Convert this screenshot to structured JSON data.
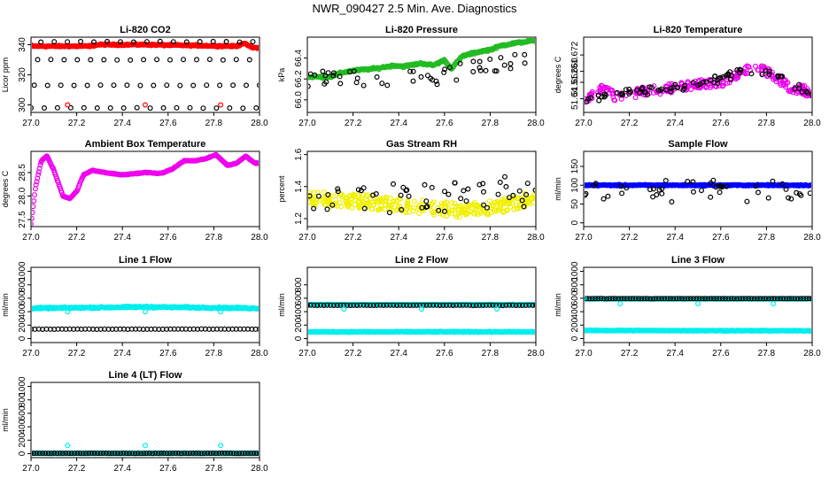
{
  "title": "NWR_090427  2.5 Min. Ave. Diagnostics",
  "colors": {
    "red": "#ff0000",
    "green": "#22bb22",
    "magenta": "#ee00ee",
    "yellow": "#f0f000",
    "blue": "#0000ff",
    "cyan": "#00eeee",
    "black": "#000000"
  },
  "chart_data": [
    {
      "id": "co2",
      "type": "scatter",
      "title": "Li-820 CO2",
      "ylabel": "Licor ppm",
      "xlim": [
        27.0,
        28.0
      ],
      "ylim": [
        295,
        345
      ],
      "xticks": [
        "27.0",
        "27.2",
        "27.4",
        "27.6",
        "27.8",
        "28.0"
      ],
      "yticks": [
        300,
        320,
        340
      ],
      "ytick_labels": [
        "300",
        "320",
        "340"
      ],
      "series": [
        {
          "name": "red",
          "color": "red",
          "style": "dense",
          "baseline": [
            [
              27.0,
              339
            ],
            [
              27.25,
              339
            ],
            [
              27.3,
              340
            ],
            [
              27.5,
              340
            ],
            [
              27.9,
              339
            ],
            [
              27.93,
              341
            ],
            [
              27.97,
              338
            ]
          ],
          "noise": 0.6
        },
        {
          "name": "black",
          "color": "black",
          "style": "sparse",
          "levels": [
            298,
            313,
            330,
            342
          ],
          "noise": 0.3,
          "count": 70
        }
      ],
      "extras": [
        [
          27.16,
          300,
          "red"
        ],
        [
          27.5,
          300,
          "red"
        ],
        [
          27.83,
          300,
          "red"
        ],
        [
          27.0,
          340,
          "red"
        ]
      ]
    },
    {
      "id": "pressure",
      "type": "scatter",
      "title": "Li-820 Pressure",
      "ylabel": "kPa",
      "xlim": [
        27.0,
        28.0
      ],
      "ylim": [
        65.88,
        66.6
      ],
      "xticks": [
        "27.0",
        "27.2",
        "27.4",
        "27.6",
        "27.8",
        "28.0"
      ],
      "yticks": [
        66.0,
        66.2,
        66.4
      ],
      "ytick_labels": [
        "66.0",
        "66.2",
        "66.4"
      ],
      "series": [
        {
          "name": "green",
          "color": "green",
          "style": "dense",
          "baseline": [
            [
              27.0,
              66.22
            ],
            [
              27.1,
              66.22
            ],
            [
              27.15,
              66.26
            ],
            [
              27.2,
              66.28
            ],
            [
              27.3,
              66.3
            ],
            [
              27.38,
              66.33
            ],
            [
              27.42,
              66.32
            ],
            [
              27.5,
              66.35
            ],
            [
              27.55,
              66.33
            ],
            [
              27.6,
              66.38
            ],
            [
              27.63,
              66.3
            ],
            [
              27.68,
              66.42
            ],
            [
              27.75,
              66.46
            ],
            [
              27.8,
              66.48
            ],
            [
              27.85,
              66.52
            ],
            [
              27.9,
              66.54
            ],
            [
              28.0,
              66.57
            ]
          ],
          "noise": 0.012
        },
        {
          "name": "black",
          "color": "black",
          "style": "scatter",
          "baseline": [
            [
              27.0,
              66.2
            ],
            [
              27.5,
              66.2
            ],
            [
              28.0,
              66.4
            ]
          ],
          "spread": 0.16,
          "count": 50
        }
      ]
    },
    {
      "id": "temperature",
      "type": "scatter",
      "title": "Li-820 Temperature",
      "ylabel": "degrees C",
      "xlim": [
        27.0,
        28.0
      ],
      "ylim": [
        51.63,
        51.685
      ],
      "xticks": [
        "27.0",
        "27.2",
        "27.4",
        "27.6",
        "27.8",
        "28.0"
      ],
      "yticks": [
        51.64,
        51.652,
        51.66,
        51.672
      ],
      "ytick_labels": [
        "51.64",
        "51.652",
        "51.660",
        "51.672"
      ],
      "series": [
        {
          "name": "magenta",
          "color": "magenta",
          "style": "scatter",
          "baseline": [
            [
              27.0,
              51.637
            ],
            [
              27.08,
              51.648
            ],
            [
              27.15,
              51.64
            ],
            [
              27.25,
              51.645
            ],
            [
              27.4,
              51.648
            ],
            [
              27.5,
              51.65
            ],
            [
              27.6,
              51.652
            ],
            [
              27.7,
              51.66
            ],
            [
              27.75,
              51.665
            ],
            [
              27.8,
              51.66
            ],
            [
              27.85,
              51.655
            ],
            [
              27.9,
              51.648
            ],
            [
              28.0,
              51.645
            ]
          ],
          "spread": 0.007,
          "count": 260
        },
        {
          "name": "black",
          "color": "black",
          "style": "scatter",
          "baseline": [
            [
              27.0,
              51.64
            ],
            [
              27.5,
              51.65
            ],
            [
              27.75,
              51.662
            ],
            [
              28.0,
              51.645
            ]
          ],
          "spread": 0.006,
          "count": 80
        }
      ]
    },
    {
      "id": "ambient",
      "type": "line",
      "title": "Ambient Box Temperature",
      "ylabel": "degrees C",
      "xlim": [
        27.0,
        28.0
      ],
      "ylim": [
        27.35,
        28.95
      ],
      "xticks": [
        "27.0",
        "27.2",
        "27.4",
        "27.6",
        "27.8",
        "28.0"
      ],
      "yticks": [
        27.5,
        28.0,
        28.5
      ],
      "ytick_labels": [
        "27.5",
        "28.0",
        "28.5"
      ],
      "series": [
        {
          "name": "magenta",
          "color": "magenta",
          "style": "dense",
          "baseline": [
            [
              27.0,
              27.4
            ],
            [
              27.02,
              28.2
            ],
            [
              27.045,
              28.75
            ],
            [
              27.07,
              28.85
            ],
            [
              27.1,
              28.55
            ],
            [
              27.14,
              28.0
            ],
            [
              27.17,
              27.95
            ],
            [
              27.2,
              28.1
            ],
            [
              27.23,
              28.45
            ],
            [
              27.27,
              28.55
            ],
            [
              27.32,
              28.5
            ],
            [
              27.4,
              28.45
            ],
            [
              27.5,
              28.5
            ],
            [
              27.57,
              28.48
            ],
            [
              27.62,
              28.58
            ],
            [
              27.67,
              28.75
            ],
            [
              27.72,
              28.75
            ],
            [
              27.77,
              28.8
            ],
            [
              27.81,
              28.88
            ],
            [
              27.86,
              28.65
            ],
            [
              27.9,
              28.7
            ],
            [
              27.94,
              28.85
            ],
            [
              27.98,
              28.7
            ]
          ],
          "noise": 0.01
        }
      ]
    },
    {
      "id": "rh",
      "type": "scatter",
      "title": "Gas Stream RH",
      "ylabel": "percent",
      "xlim": [
        27.0,
        28.0
      ],
      "ylim": [
        1.15,
        1.62
      ],
      "xticks": [
        "27.0",
        "27.2",
        "27.4",
        "27.6",
        "27.8",
        "28.0"
      ],
      "yticks": [
        1.2,
        1.4,
        1.6
      ],
      "ytick_labels": [
        "1.2",
        "1.4",
        "1.6"
      ],
      "series": [
        {
          "name": "yellow",
          "color": "yellow",
          "style": "scatter",
          "baseline": [
            [
              27.0,
              1.33
            ],
            [
              27.3,
              1.3
            ],
            [
              27.5,
              1.27
            ],
            [
              27.7,
              1.25
            ],
            [
              27.85,
              1.28
            ],
            [
              28.0,
              1.33
            ]
          ],
          "spread": 0.09,
          "count": 320
        },
        {
          "name": "black",
          "color": "black",
          "style": "scatter",
          "baseline": [
            [
              27.0,
              1.35
            ],
            [
              27.5,
              1.32
            ],
            [
              28.0,
              1.38
            ]
          ],
          "spread": 0.2,
          "count": 55
        }
      ]
    },
    {
      "id": "sampleflow",
      "type": "scatter",
      "title": "Sample Flow",
      "ylabel": "ml/min",
      "xlim": [
        27.0,
        28.0
      ],
      "ylim": [
        -10,
        190
      ],
      "xticks": [
        "27.0",
        "27.2",
        "27.4",
        "27.6",
        "27.8",
        "28.0"
      ],
      "yticks": [
        0,
        50,
        100,
        150
      ],
      "ytick_labels": [
        "0",
        "50",
        "100",
        "150"
      ],
      "series": [
        {
          "name": "blue",
          "color": "blue",
          "style": "dense",
          "baseline": [
            [
              27.0,
              100
            ],
            [
              28.0,
              100
            ]
          ],
          "noise": 2
        },
        {
          "name": "black",
          "color": "black",
          "style": "scatter",
          "baseline": [
            [
              27.0,
              88
            ],
            [
              28.0,
              80
            ]
          ],
          "spread": 60,
          "count": 45
        }
      ]
    },
    {
      "id": "line1",
      "type": "scatter",
      "title": "Line 1 Flow",
      "ylabel": "ml/min",
      "xlim": [
        27.0,
        28.0
      ],
      "ylim": [
        -60,
        1060
      ],
      "xticks": [
        "27.0",
        "27.2",
        "27.4",
        "27.6",
        "27.8",
        "28.0"
      ],
      "yticks": [
        0,
        200,
        400,
        600,
        800,
        1000
      ],
      "ytick_labels": [
        "0",
        "200",
        "400",
        "600",
        "800",
        "1000"
      ],
      "series": [
        {
          "name": "cyan",
          "color": "cyan",
          "style": "band",
          "baseline": [
            [
              27.0,
              450
            ],
            [
              27.5,
              470
            ],
            [
              28.0,
              450
            ]
          ],
          "noise": 14
        },
        {
          "name": "black",
          "color": "black",
          "style": "sparse",
          "levels": [
            140
          ],
          "noise": 3,
          "count": 60
        }
      ],
      "extras": [
        [
          27.16,
          400,
          "cyan"
        ],
        [
          27.5,
          400,
          "cyan"
        ],
        [
          27.83,
          400,
          "cyan"
        ]
      ]
    },
    {
      "id": "line2",
      "type": "scatter",
      "title": "Line 2 Flow",
      "ylabel": "ml/min",
      "xlim": [
        27.0,
        28.0
      ],
      "ylim": [
        -60,
        1060
      ],
      "xticks": [
        "27.0",
        "27.2",
        "27.4",
        "27.6",
        "27.8",
        "28.0"
      ],
      "yticks": [
        0,
        200,
        400,
        600,
        800
      ],
      "ytick_labels": [
        "0",
        "200",
        "400",
        "600",
        "800"
      ],
      "series": [
        {
          "name": "cyan",
          "color": "cyan",
          "style": "band",
          "baseline": [
            [
              27.0,
              100
            ],
            [
              28.0,
              100
            ]
          ],
          "noise": 8
        },
        {
          "name": "cyanb",
          "color": "cyan",
          "style": "band",
          "baseline": [
            [
              27.0,
              505
            ],
            [
              28.0,
              505
            ]
          ],
          "noise": 6
        },
        {
          "name": "black",
          "color": "black",
          "style": "sparse",
          "levels": [
            495
          ],
          "noise": 3,
          "count": 70
        }
      ],
      "extras": [
        [
          27.16,
          440,
          "cyan"
        ],
        [
          27.5,
          440,
          "cyan"
        ],
        [
          27.83,
          440,
          "cyan"
        ]
      ]
    },
    {
      "id": "line3",
      "type": "scatter",
      "title": "Line 3 Flow",
      "ylabel": "ml/min",
      "xlim": [
        27.0,
        28.0
      ],
      "ylim": [
        -60,
        1060
      ],
      "xticks": [
        "27.0",
        "27.2",
        "27.4",
        "27.6",
        "27.8",
        "28.0"
      ],
      "yticks": [
        0,
        200,
        400,
        600,
        800,
        1000
      ],
      "ytick_labels": [
        "0",
        "200",
        "400",
        "600",
        "800",
        "1000"
      ],
      "series": [
        {
          "name": "cyan",
          "color": "cyan",
          "style": "band",
          "baseline": [
            [
              27.0,
              120
            ],
            [
              28.0,
              115
            ]
          ],
          "noise": 7
        },
        {
          "name": "cyanb",
          "color": "cyan",
          "style": "band",
          "baseline": [
            [
              27.0,
              590
            ],
            [
              28.0,
              590
            ]
          ],
          "noise": 5
        },
        {
          "name": "black",
          "color": "black",
          "style": "sparse",
          "levels": [
            595
          ],
          "noise": 3,
          "count": 80
        }
      ],
      "extras": [
        [
          27.16,
          520,
          "cyan"
        ],
        [
          27.5,
          520,
          "cyan"
        ],
        [
          27.83,
          520,
          "cyan"
        ],
        [
          27.0,
          600,
          "cyan"
        ]
      ]
    },
    {
      "id": "line4",
      "type": "scatter",
      "title": "Line 4 (LT) Flow",
      "ylabel": "ml/min",
      "xlim": [
        27.0,
        28.0
      ],
      "ylim": [
        -60,
        1060
      ],
      "xticks": [
        "27.0",
        "27.2",
        "27.4",
        "27.6",
        "27.8",
        "28.0"
      ],
      "yticks": [
        0,
        200,
        400,
        600,
        800,
        1000
      ],
      "ytick_labels": [
        "0",
        "200",
        "400",
        "600",
        "800",
        "1000"
      ],
      "series": [
        {
          "name": "cyan",
          "color": "cyan",
          "style": "band",
          "baseline": [
            [
              27.0,
              5
            ],
            [
              28.0,
              5
            ]
          ],
          "noise": 4
        },
        {
          "name": "black",
          "color": "black",
          "style": "sparse",
          "levels": [
            5
          ],
          "noise": 2,
          "count": 80
        }
      ],
      "extras": [
        [
          27.16,
          120,
          "cyan"
        ],
        [
          27.5,
          120,
          "cyan"
        ],
        [
          27.83,
          120,
          "cyan"
        ]
      ]
    }
  ]
}
